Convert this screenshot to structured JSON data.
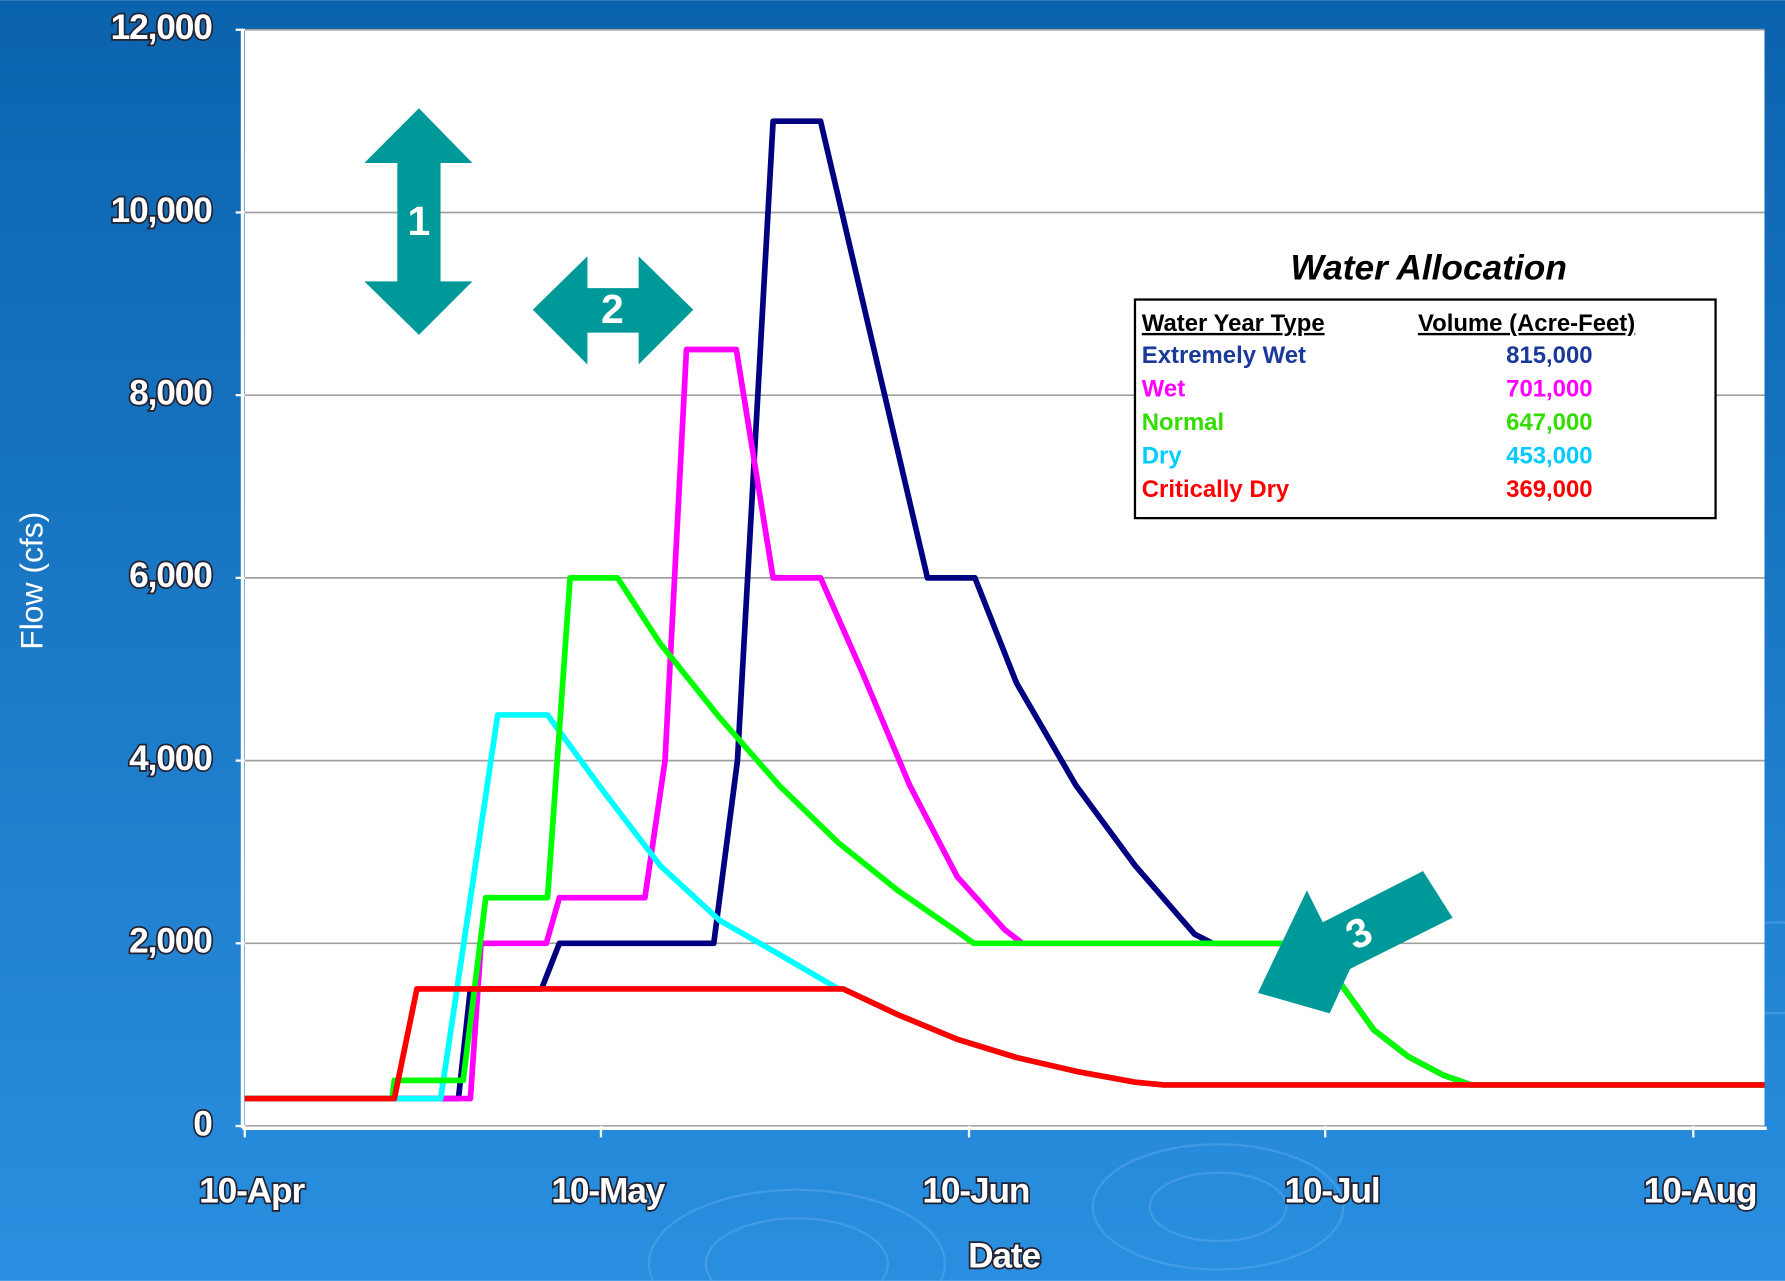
{
  "chart_data": {
    "type": "line",
    "xlabel": "Date",
    "ylabel": "Flow (cfs)",
    "xlim": [
      0,
      128
    ],
    "ylim": [
      0,
      12000
    ],
    "xticks": [
      {
        "value": 0,
        "label": "10-Apr"
      },
      {
        "value": 30,
        "label": "10-May"
      },
      {
        "value": 61,
        "label": "10-Jun"
      },
      {
        "value": 91,
        "label": "10-Jul"
      },
      {
        "value": 122,
        "label": "10-Aug"
      }
    ],
    "yticks": [
      0,
      {
        "value": 2000,
        "label": "2,000"
      },
      {
        "value": 4000,
        "label": "4,000"
      },
      {
        "value": 6000,
        "label": "6,000"
      },
      {
        "value": 8000,
        "label": "8,000"
      },
      {
        "value": 10000,
        "label": "10,000"
      },
      {
        "value": 12000,
        "label": "12,000"
      }
    ],
    "grid": true,
    "series": [
      {
        "name": "Extremely Wet",
        "color": "#000080",
        "x": [
          0,
          18,
          19,
          25,
          26.5,
          39.5,
          41.5,
          44.5,
          48.5,
          57.5,
          61.5,
          65,
          70,
          75,
          80,
          81.5,
          88.4,
          91.8,
          95.1,
          98,
          100.9,
          103.3,
          128
        ],
        "values": [
          300,
          300,
          1500,
          1500,
          2000,
          2000,
          4000,
          11000,
          11000,
          6000,
          6000,
          4850,
          3730,
          2850,
          2100,
          2000,
          2000,
          1650,
          1050,
          760,
          560,
          450,
          450
        ]
      },
      {
        "name": "Wet",
        "color": "#ff00ff",
        "x": [
          0,
          19,
          19.9,
          25.4,
          26.5,
          33.7,
          35.4,
          37.2,
          41.4,
          44.5,
          48.5,
          52,
          56,
          60,
          64,
          65.5,
          88.4,
          91.8,
          95.1,
          98,
          100.9,
          103.3,
          128
        ],
        "values": [
          300,
          300,
          2000,
          2000,
          2500,
          2500,
          4000,
          8500,
          8500,
          6000,
          6000,
          4970,
          3730,
          2730,
          2150,
          2000,
          2000,
          1650,
          1050,
          760,
          560,
          450,
          450
        ]
      },
      {
        "name": "Dry",
        "color": "#00ffff",
        "x": [
          0,
          16.5,
          21.3,
          25.5,
          30,
          35,
          40,
          45,
          50,
          50.4,
          55,
          60,
          65,
          70,
          75,
          77.4,
          128
        ],
        "values": [
          300,
          300,
          4500,
          4500,
          3700,
          2850,
          2250,
          1880,
          1500,
          1500,
          1220,
          950,
          750,
          600,
          480,
          450,
          450
        ]
      },
      {
        "name": "Normal",
        "color": "#00ff00",
        "x": [
          0,
          12.4,
          12.6,
          18.4,
          20.3,
          25.5,
          27.4,
          31.4,
          35,
          40,
          45,
          50,
          55,
          60,
          61.4,
          88.4,
          91.8,
          95.1,
          98,
          100.9,
          103.3,
          128
        ],
        "values": [
          300,
          300,
          500,
          500,
          2500,
          2500,
          6000,
          6000,
          5280,
          4470,
          3730,
          3100,
          2580,
          2130,
          2000,
          2000,
          1650,
          1050,
          760,
          560,
          450,
          450
        ]
      },
      {
        "name": "Critically Dry",
        "color": "#ff0000",
        "x": [
          0,
          12.6,
          14.5,
          50.4,
          55,
          60,
          65,
          70,
          75,
          77.4,
          128
        ],
        "values": [
          300,
          300,
          1500,
          1500,
          1220,
          950,
          750,
          600,
          480,
          450,
          450
        ]
      }
    ],
    "allocation": {
      "title": "Water Allocation",
      "headers": [
        "Water Year Type",
        "Volume (Acre-Feet)"
      ],
      "rows": [
        {
          "name": "Extremely Wet",
          "volume": "815,000",
          "color": "#1a3a9a"
        },
        {
          "name": "Wet",
          "volume": "701,000",
          "color": "#ff00ff"
        },
        {
          "name": "Normal",
          "volume": "647,000",
          "color": "#33dd00"
        },
        {
          "name": "Dry",
          "volume": "453,000",
          "color": "#00ccff"
        },
        {
          "name": "Critically Dry",
          "volume": "369,000",
          "color": "#ff0000"
        }
      ]
    },
    "annotations": [
      "1",
      "2",
      "3"
    ]
  }
}
